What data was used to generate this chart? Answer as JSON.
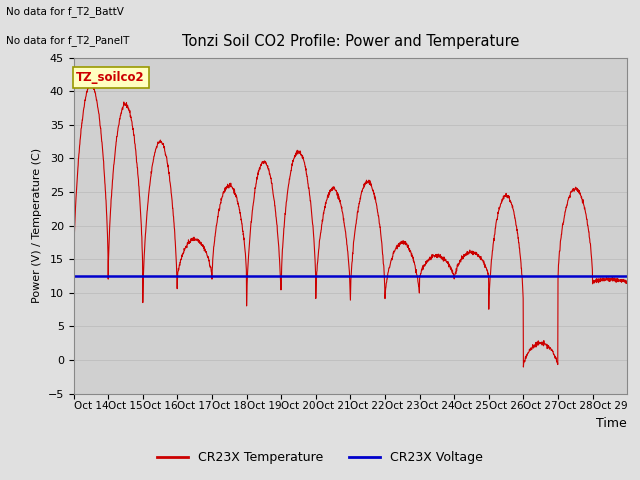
{
  "title": "Tonzi Soil CO2 Profile: Power and Temperature",
  "ylabel": "Power (V) / Temperature (C)",
  "xlabel": "Time",
  "ylim": [
    -5,
    45
  ],
  "no_data_text1": "No data for f_T2_BattV",
  "no_data_text2": "No data for f_T2_PanelT",
  "legend_label": "TZ_soilco2",
  "temp_label": "CR23X Temperature",
  "volt_label": "CR23X Voltage",
  "voltage_value": 12.5,
  "xtick_labels": [
    "Oct 14",
    "Oct 15",
    "Oct 16",
    "Oct 17",
    "Oct 18",
    "Oct 19",
    "Oct 20",
    "Oct 21",
    "Oct 22",
    "Oct 23",
    "Oct 24",
    "Oct 25",
    "Oct 26",
    "Oct 27",
    "Oct 28",
    "Oct 29"
  ],
  "yticks": [
    -5,
    0,
    5,
    10,
    15,
    20,
    25,
    30,
    35,
    40,
    45
  ],
  "temp_color": "#cc0000",
  "volt_color": "#0000cc",
  "grid_color": "#c0c0c0",
  "daily_peaks": [
    41,
    38,
    32.5,
    18,
    26,
    29.5,
    31,
    25.5,
    26.5,
    17.5,
    15.5,
    16,
    24.5,
    2.5,
    25.5,
    12
  ],
  "daily_mins": [
    13,
    12,
    8.5,
    12,
    12,
    8,
    10.8,
    9,
    9,
    9,
    12,
    12,
    7.5,
    -1,
    12,
    11.5
  ]
}
